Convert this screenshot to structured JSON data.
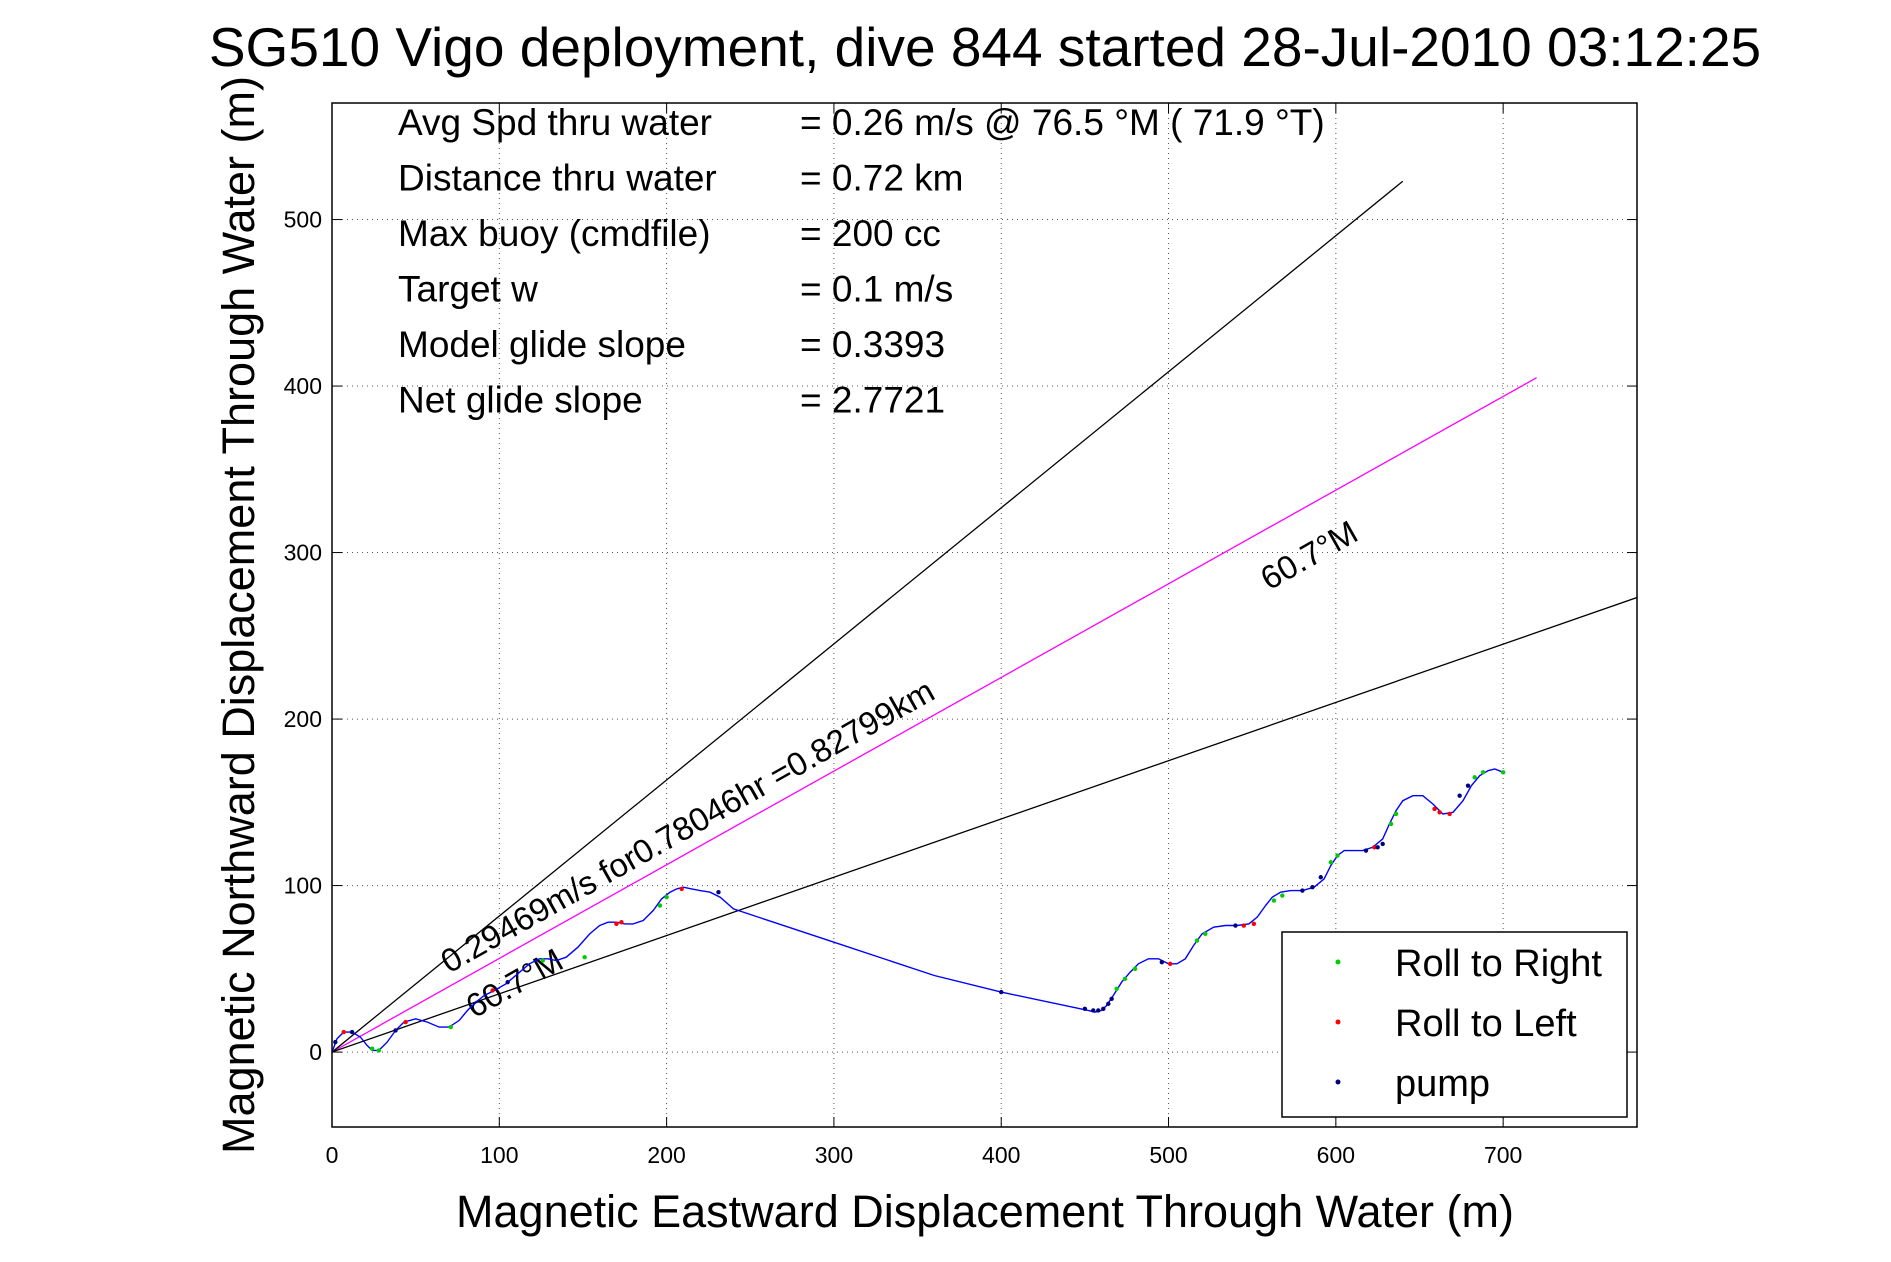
{
  "chart_data": {
    "type": "line",
    "title": "SG510 Vigo deployment, dive 844 started 28-Jul-2010 03:12:25",
    "xlabel": "Magnetic Eastward Displacement Through Water (m)",
    "ylabel": "Magnetic Northward Displacement Through Water (m)",
    "xlim": [
      0,
      780
    ],
    "ylim": [
      -45,
      570
    ],
    "xticks": [
      0,
      100,
      200,
      300,
      400,
      500,
      600,
      700
    ],
    "yticks": [
      0,
      100,
      200,
      300,
      400,
      500
    ],
    "grid": true,
    "info": [
      {
        "label": "Avg Spd thru water",
        "value": "=  0.26 m/s @  76.5 °M ( 71.9 °T)"
      },
      {
        "label": "Distance thru water",
        "value": "=  0.72 km"
      },
      {
        "label": "Max buoy (cmdfile)",
        "value": "= 200 cc"
      },
      {
        "label": "Target w",
        "value": "= 0.1 m/s"
      },
      {
        "label": "Model glide slope",
        "value": "= 0.3393"
      },
      {
        "label": "Net glide slope",
        "value": "= 2.7721"
      }
    ],
    "reference_lines": [
      {
        "kind": "course",
        "x": [
          0,
          720
        ],
        "y": [
          0,
          405
        ],
        "color": "#ff00ff"
      },
      {
        "kind": "bound",
        "x": [
          0,
          640
        ],
        "y": [
          0,
          523
        ],
        "color": "#000000"
      },
      {
        "kind": "bound",
        "x": [
          0,
          780
        ],
        "y": [
          0,
          273
        ],
        "color": "#000000"
      }
    ],
    "annotations": [
      {
        "text": "0.29469m/s for0.78046hr =0.82799km",
        "x": 70,
        "y": 47,
        "angle": -29.5
      },
      {
        "text": "60.7°M",
        "x": 85,
        "y": 20,
        "angle": -29.5
      },
      {
        "text": "60.7°M",
        "x": 560,
        "y": 277,
        "angle": -29.5
      }
    ],
    "series": [
      {
        "name": "track",
        "color": "#0000ff",
        "x": [
          0,
          3,
          7,
          12,
          17,
          21,
          24,
          28,
          33,
          38,
          43,
          50,
          57,
          64,
          70,
          76,
          81,
          86,
          91,
          97,
          104,
          111,
          118,
          124,
          129,
          134,
          140,
          147,
          154,
          160,
          165,
          170,
          175,
          180,
          186,
          192,
          197,
          202,
          206,
          210,
          215,
          220,
          226,
          232,
          240,
          300,
          360,
          400,
          452,
          456,
          460,
          463,
          467,
          472,
          477,
          482,
          488,
          494,
          500,
          505,
          510,
          515,
          520,
          527,
          534,
          541,
          548,
          553,
          558,
          562,
          567,
          573,
          580,
          587,
          593,
          597,
          601,
          605,
          610,
          616,
          622,
          628,
          632,
          636,
          640,
          646,
          652,
          658,
          664,
          670,
          676,
          681,
          686,
          691,
          695,
          700
        ],
        "y": [
          0,
          8,
          12,
          12,
          9,
          4,
          1,
          1,
          6,
          13,
          18,
          20,
          18,
          15,
          15,
          19,
          25,
          30,
          34,
          37,
          41,
          47,
          53,
          56,
          56,
          55,
          57,
          63,
          71,
          76,
          78,
          78,
          77,
          77,
          79,
          85,
          92,
          96,
          98,
          99,
          98,
          97,
          96,
          93,
          86,
          66,
          46,
          36,
          25,
          24,
          25,
          28,
          34,
          42,
          48,
          53,
          56,
          56,
          53,
          53,
          56,
          64,
          71,
          75,
          76,
          76,
          77,
          81,
          88,
          93,
          96,
          97,
          97,
          99,
          104,
          112,
          118,
          121,
          121,
          121,
          123,
          128,
          137,
          145,
          151,
          154,
          154,
          149,
          143,
          144,
          151,
          160,
          166,
          169,
          170,
          168
        ]
      },
      {
        "name": "Roll to Right",
        "color": "#00cc00",
        "x": [
          24,
          28,
          71,
          126,
          151,
          196,
          200,
          469,
          474,
          480,
          517,
          522,
          563,
          568,
          597,
          601,
          633,
          636,
          683,
          688,
          700
        ],
        "y": [
          2,
          1,
          15,
          55,
          57,
          88,
          93,
          38,
          44,
          50,
          67,
          71,
          91,
          94,
          114,
          118,
          137,
          143,
          165,
          168,
          168
        ]
      },
      {
        "name": "Roll to Left",
        "color": "#ff0000",
        "x": [
          7,
          44,
          96,
          170,
          173,
          209,
          501,
          545,
          551,
          623,
          659,
          662,
          668
        ],
        "y": [
          12,
          18,
          37,
          77,
          78,
          98,
          53,
          76,
          77,
          123,
          146,
          144,
          143
        ],
        "marker_color": "#ff0000"
      },
      {
        "name": "pump",
        "color": "#000080",
        "x": [
          2,
          12,
          38,
          105,
          231,
          400,
          450,
          455,
          458,
          461,
          464,
          466,
          496,
          540,
          580,
          586,
          591,
          618,
          625,
          628,
          674,
          679
        ],
        "y": [
          6,
          12,
          13,
          42,
          96,
          36,
          26,
          25,
          25,
          26,
          29,
          32,
          54,
          76,
          97,
          99,
          105,
          121,
          123,
          125,
          154,
          160
        ]
      }
    ],
    "legend": {
      "position": "bottom-right",
      "entries": [
        {
          "label": "Roll to Right",
          "color": "#00cc00"
        },
        {
          "label": "Roll to Left",
          "color": "#ff0000"
        },
        {
          "label": "pump",
          "color": "#000080"
        }
      ]
    }
  }
}
